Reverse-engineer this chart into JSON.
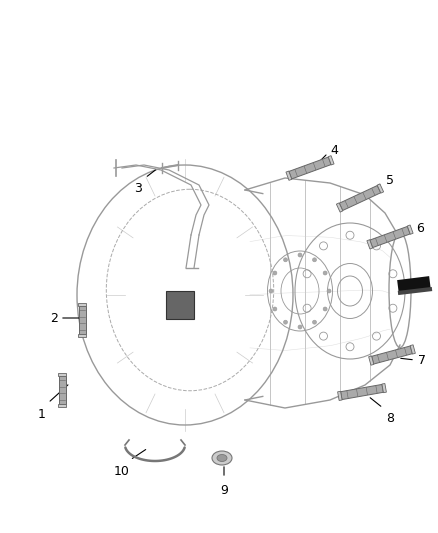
{
  "background_color": "#ffffff",
  "line_color": "#999999",
  "dark_line_color": "#444444",
  "mid_line_color": "#777777",
  "label_color": "#000000",
  "figsize": [
    4.38,
    5.33
  ],
  "dpi": 100,
  "callout_numbers": [
    "1",
    "2",
    "3",
    "4",
    "5",
    "6",
    "7",
    "8",
    "9",
    "10"
  ],
  "stud_color": "#aaaaaa",
  "stud_edge_color": "#666666",
  "body_fill": "#e8e8e8",
  "body_edge": "#888888"
}
